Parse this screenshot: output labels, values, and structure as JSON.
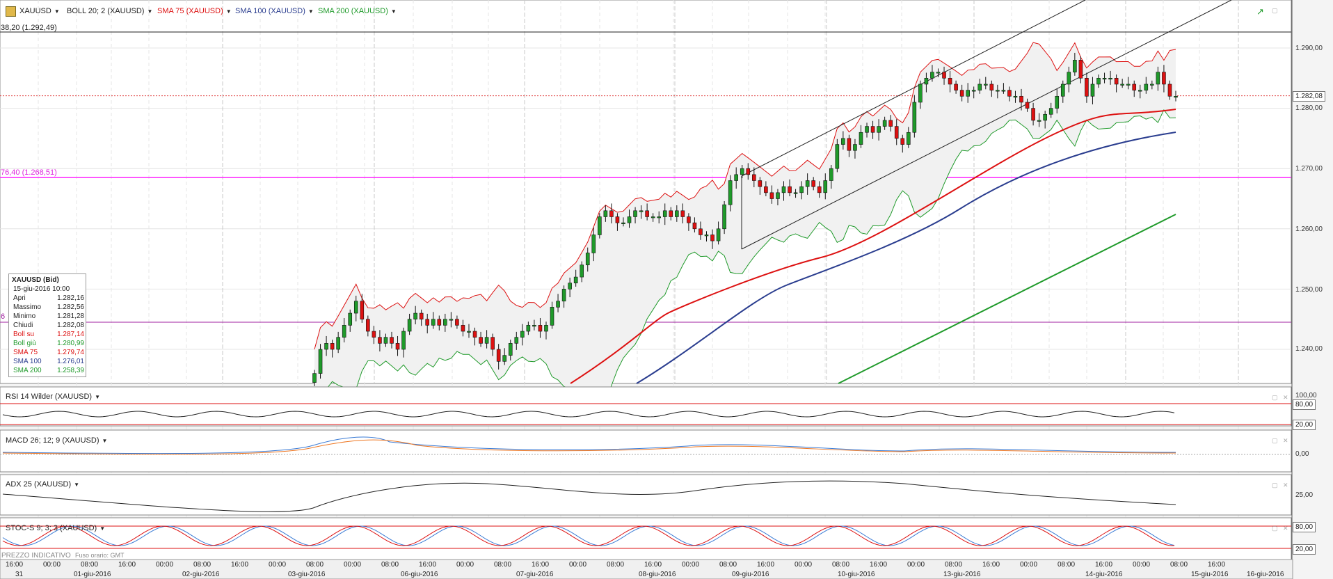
{
  "symbol": {
    "name": "XAUUSD",
    "icon": "chart-icon"
  },
  "indicators": {
    "boll": {
      "label": "BOLL 20; 2 (XAUUSD)",
      "color": "#222222"
    },
    "sma75": {
      "label": "SMA 75 (XAUUSD)",
      "color": "#dd1111"
    },
    "sma100": {
      "label": "SMA 100 (XAUUSD)",
      "color": "#2a3d8f"
    },
    "sma200": {
      "label": "SMA 200 (XAUUSD)",
      "color": "#1f9a2a"
    }
  },
  "levels": {
    "fib38": "38,20 (1.292,49)",
    "fib76": "76,40 (1.268,51)",
    "fib_partial": "6"
  },
  "price_axis": {
    "ticks": [
      "1.290,00",
      "1.280,00",
      "1.270,00",
      "1.260,00",
      "1.250,00",
      "1.240,00"
    ],
    "current": "1.282,08"
  },
  "info_panel": {
    "title": "XAUUSD (Bid)",
    "date": "15-giu-2016 10:00",
    "rows": [
      {
        "k": "Apri",
        "v": "1.282,16",
        "color": "#222222"
      },
      {
        "k": "Massimo",
        "v": "1.282,56",
        "color": "#222222"
      },
      {
        "k": "Minimo",
        "v": "1.281,28",
        "color": "#222222"
      },
      {
        "k": "Chiudi",
        "v": "1.282,08",
        "color": "#222222"
      },
      {
        "k": "Boll su",
        "v": "1.287,14",
        "color": "#dd1111"
      },
      {
        "k": "Boll giù",
        "v": "1.280,99",
        "color": "#1f9a2a"
      },
      {
        "k": "SMA 75",
        "v": "1.279,74",
        "color": "#dd1111"
      },
      {
        "k": "SMA 100",
        "v": "1.276,01",
        "color": "#2a3d8f"
      },
      {
        "k": "SMA 200",
        "v": "1.258,39",
        "color": "#1f9a2a"
      }
    ]
  },
  "subpanels": {
    "rsi": {
      "label": "RSI 14 Wilder (XAUUSD)",
      "top": "100,00",
      "level_hi": "80,00",
      "level_lo": "20,00"
    },
    "macd": {
      "label": "MACD 26; 12; 9 (XAUUSD)",
      "zero": "0,00"
    },
    "adx": {
      "label": "ADX 25 (XAUUSD)",
      "level": "25,00"
    },
    "stoc": {
      "label": "STOC-S 9; 3; 3 (XAUUSD)",
      "level_hi": "80,00",
      "level_lo": "20,00"
    }
  },
  "footer": {
    "indicative": "PREZZO INDICATIVO",
    "timezone": "Fuso orario: GMT"
  },
  "time_axis": {
    "times": [
      "16:00",
      "00:00",
      "08:00",
      "16:00",
      "00:00",
      "08:00",
      "16:00",
      "00:00",
      "08:00",
      "00:00",
      "08:00",
      "16:00",
      "00:00",
      "08:00",
      "16:00",
      "00:00",
      "08:00",
      "16:00",
      "00:00",
      "08:00",
      "16:00",
      "00:00",
      "08:00",
      "16:00",
      "00:00",
      "08:00",
      "16:00",
      "00:00",
      "08:00",
      "16:00",
      "00:00",
      "08:00",
      "16:00"
    ],
    "dates": [
      "31",
      "01-giu-2016",
      "02-giu-2016",
      "03-giu-2016",
      "06-giu-2016",
      "07-giu-2016",
      "08-giu-2016",
      "09-giu-2016",
      "10-giu-2016",
      "13-giu-2016",
      "14-giu-2016",
      "15-giu-2016",
      "16-giu-2016"
    ]
  },
  "chart_data": {
    "type": "candlestick",
    "symbol": "XAUUSD",
    "ylim": [
      1234,
      1296
    ],
    "levels": {
      "fib_38_2": 1292.49,
      "fib_76_4": 1268.51,
      "current": 1282.08
    },
    "series_hourly_close": [
      1236,
      1240,
      1241,
      1240,
      1242,
      1244,
      1246,
      1248,
      1245,
      1243,
      1242,
      1241,
      1242,
      1241,
      1240,
      1243,
      1245,
      1246,
      1245,
      1244,
      1245,
      1244,
      1245,
      1245,
      1244,
      1243,
      1243,
      1242,
      1241,
      1242,
      1240,
      1238,
      1239,
      1241,
      1242,
      1243,
      1244,
      1244,
      1243,
      1244,
      1247,
      1248,
      1250,
      1251,
      1252,
      1254,
      1256,
      1259,
      1262,
      1263,
      1262,
      1261,
      1261,
      1262,
      1263,
      1263,
      1262,
      1262,
      1262,
      1263,
      1262,
      1263,
      1262,
      1261,
      1260,
      1259,
      1259,
      1258,
      1260,
      1264,
      1268,
      1269,
      1270,
      1269,
      1268,
      1267,
      1266,
      1265,
      1266,
      1267,
      1266,
      1266,
      1267,
      1268,
      1267,
      1266,
      1268,
      1270,
      1274,
      1275,
      1273,
      1274,
      1276,
      1277,
      1276,
      1277,
      1278,
      1277,
      1275,
      1274,
      1276,
      1281,
      1284,
      1285,
      1286,
      1286,
      1285,
      1284,
      1283,
      1282,
      1283,
      1283,
      1284,
      1284,
      1283,
      1283,
      1283,
      1282,
      1282,
      1281,
      1280,
      1278,
      1278,
      1279,
      1280,
      1282,
      1284,
      1286,
      1288,
      1285,
      1282,
      1284,
      1285,
      1285,
      1285,
      1284,
      1284,
      1284,
      1283,
      1283,
      1284,
      1284,
      1286,
      1284,
      1282,
      1282
    ],
    "info": {
      "open": 1282.16,
      "high": 1282.56,
      "low": 1281.28,
      "close": 1282.08,
      "boll_up": 1287.14,
      "boll_down": 1280.99,
      "sma75": 1279.74,
      "sma100": 1276.01,
      "sma200": 1258.39
    }
  }
}
